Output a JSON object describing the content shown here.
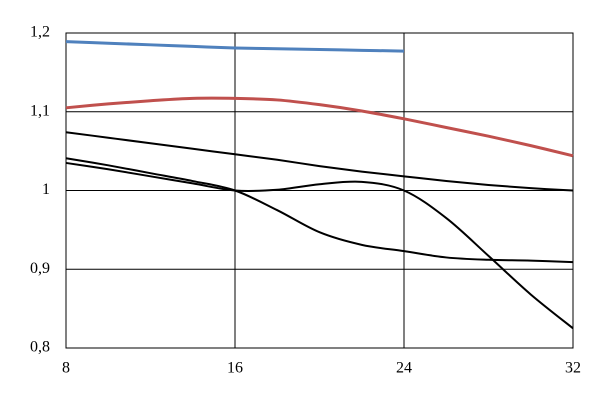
{
  "chart_data": {
    "type": "line",
    "x": [
      8,
      10,
      12,
      14,
      16,
      18,
      20,
      22,
      24,
      26,
      28,
      30,
      32
    ],
    "series": [
      {
        "color": "#4f81bd",
        "values": [
          1.189,
          1.187,
          1.185,
          1.183,
          1.181,
          1.18,
          1.179,
          1.178,
          1.177,
          null,
          null,
          null,
          null
        ]
      },
      {
        "color": "#c0504d",
        "values": [
          1.105,
          1.11,
          1.114,
          1.117,
          1.117,
          1.115,
          1.109,
          1.101,
          1.091,
          1.08,
          1.069,
          1.057,
          1.044
        ]
      },
      {
        "color": "#000000",
        "values": [
          1.074,
          1.067,
          1.06,
          1.053,
          1.046,
          1.039,
          1.031,
          1.024,
          1.018,
          1.012,
          1.007,
          1.003,
          1.0
        ]
      },
      {
        "color": "#000000",
        "values": [
          1.041,
          1.032,
          1.022,
          1.012,
          1.0,
          0.975,
          0.947,
          0.931,
          0.923,
          0.915,
          0.912,
          0.911,
          0.909
        ]
      },
      {
        "color": "#000000",
        "values": [
          1.035,
          1.027,
          1.018,
          1.009,
          1.0,
          1.001,
          1.008,
          1.011,
          1.0,
          0.965,
          0.917,
          0.868,
          0.825
        ]
      }
    ],
    "xlim": [
      8,
      32
    ],
    "xticks": [
      8,
      16,
      24,
      32
    ],
    "ylim": [
      0.8,
      1.2
    ],
    "yticks": [
      {
        "value": 0.8,
        "label": "0,8"
      },
      {
        "value": 0.9,
        "label": "0,9"
      },
      1,
      {
        "value": 1.1,
        "label": "1,1"
      },
      {
        "value": 1.2,
        "label": "1,2"
      }
    ],
    "grid": true
  }
}
